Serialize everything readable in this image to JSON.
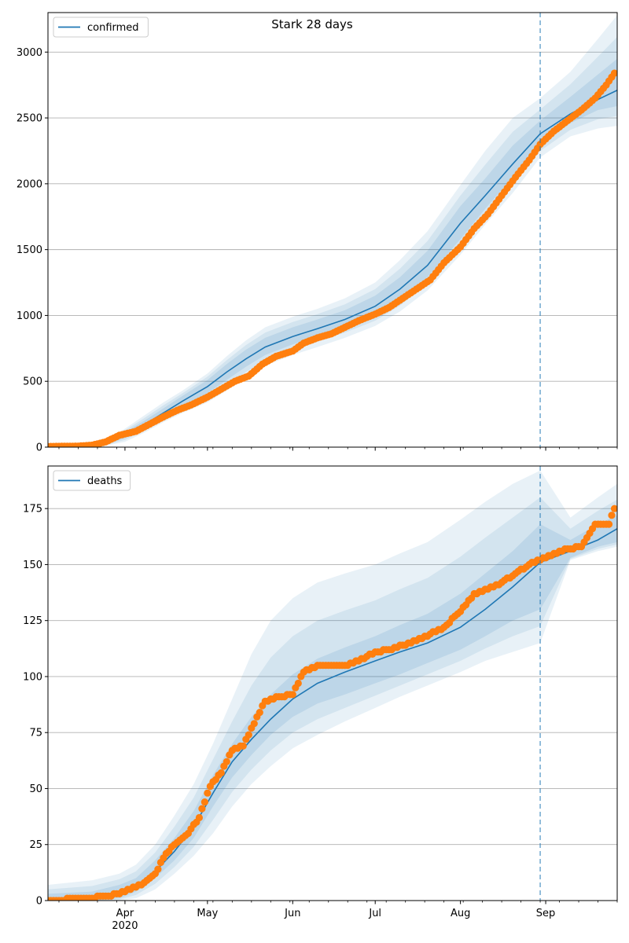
{
  "title": "Stark 28 days",
  "chart_data": [
    {
      "type": "line",
      "ylabel": "",
      "xlabel": "",
      "x_range": [
        "2020-03-04",
        "2020-09-27"
      ],
      "ylim": [
        0,
        3300
      ],
      "yticks": [
        0,
        500,
        1000,
        1500,
        2000,
        2500,
        3000
      ],
      "grid": "horizontal",
      "legend": {
        "placement": "upper-left",
        "entries": [
          "confirmed"
        ]
      },
      "forecast_start": "2020-08-30",
      "series": [
        {
          "name": "confirmed",
          "role": "model",
          "color": "#1f77b4",
          "x": [
            "2020-03-04",
            "2020-03-18",
            "2020-03-25",
            "2020-04-01",
            "2020-04-08",
            "2020-04-15",
            "2020-04-22",
            "2020-05-01",
            "2020-05-08",
            "2020-05-15",
            "2020-05-22",
            "2020-06-01",
            "2020-06-10",
            "2020-06-20",
            "2020-07-01",
            "2020-07-10",
            "2020-07-20",
            "2020-08-01",
            "2020-08-10",
            "2020-08-20",
            "2020-08-30",
            "2020-09-10",
            "2020-09-20",
            "2020-09-27"
          ],
          "values": [
            0,
            5,
            25,
            90,
            170,
            260,
            350,
            460,
            570,
            670,
            760,
            840,
            900,
            970,
            1070,
            1200,
            1380,
            1700,
            1910,
            2150,
            2380,
            2530,
            2640,
            2710
          ],
          "band_outer_lower": [
            0,
            0,
            10,
            40,
            110,
            190,
            260,
            340,
            430,
            530,
            620,
            700,
            760,
            830,
            920,
            1030,
            1190,
            1460,
            1690,
            1930,
            2200,
            2360,
            2420,
            2440
          ],
          "band_outer_upper": [
            5,
            15,
            50,
            140,
            240,
            340,
            430,
            560,
            690,
            810,
            910,
            990,
            1050,
            1130,
            1250,
            1420,
            1640,
            1990,
            2250,
            2500,
            2650,
            2850,
            3100,
            3280
          ],
          "band_inner_lower": [
            0,
            2,
            18,
            70,
            145,
            230,
            310,
            410,
            510,
            610,
            700,
            780,
            840,
            910,
            1000,
            1120,
            1290,
            1580,
            1810,
            2050,
            2300,
            2460,
            2560,
            2590
          ],
          "band_inner_upper": [
            2,
            9,
            35,
            115,
            200,
            295,
            390,
            510,
            630,
            740,
            830,
            910,
            970,
            1040,
            1150,
            1290,
            1490,
            1830,
            2040,
            2290,
            2480,
            2660,
            2830,
            2950
          ]
        },
        {
          "name": "observed confirmed",
          "role": "observed",
          "color": "#ff7f0e",
          "x": [
            "2020-03-04",
            "2020-03-15",
            "2020-03-20",
            "2020-03-25",
            "2020-03-30",
            "2020-04-05",
            "2020-04-10",
            "2020-04-15",
            "2020-04-20",
            "2020-04-25",
            "2020-05-01",
            "2020-05-06",
            "2020-05-11",
            "2020-05-16",
            "2020-05-21",
            "2020-05-26",
            "2020-06-01",
            "2020-06-05",
            "2020-06-10",
            "2020-06-15",
            "2020-06-20",
            "2020-06-25",
            "2020-07-01",
            "2020-07-06",
            "2020-07-11",
            "2020-07-16",
            "2020-07-21",
            "2020-07-26",
            "2020-08-01",
            "2020-08-06",
            "2020-08-11",
            "2020-08-16",
            "2020-08-21",
            "2020-08-26",
            "2020-08-30",
            "2020-09-04",
            "2020-09-09",
            "2020-09-14",
            "2020-09-19",
            "2020-09-23",
            "2020-09-26"
          ],
          "values": [
            5,
            8,
            15,
            40,
            90,
            120,
            175,
            230,
            280,
            320,
            380,
            440,
            500,
            540,
            630,
            690,
            730,
            790,
            830,
            860,
            910,
            960,
            1010,
            1060,
            1130,
            1200,
            1270,
            1400,
            1520,
            1660,
            1770,
            1910,
            2050,
            2180,
            2300,
            2400,
            2480,
            2560,
            2650,
            2750,
            2840
          ]
        }
      ]
    },
    {
      "type": "line",
      "ylabel": "",
      "xlabel": "",
      "x_range": [
        "2020-03-04",
        "2020-09-27"
      ],
      "ylim": [
        0,
        194
      ],
      "yticks": [
        0,
        25,
        50,
        75,
        100,
        125,
        150,
        175
      ],
      "xticks": [
        {
          "date": "2020-04-01",
          "label": "Apr",
          "sub": "2020"
        },
        {
          "date": "2020-05-01",
          "label": "May"
        },
        {
          "date": "2020-06-01",
          "label": "Jun"
        },
        {
          "date": "2020-07-01",
          "label": "Jul"
        },
        {
          "date": "2020-08-01",
          "label": "Aug"
        },
        {
          "date": "2020-09-01",
          "label": "Sep"
        }
      ],
      "grid": "horizontal",
      "legend": {
        "placement": "upper-left",
        "entries": [
          "deaths"
        ]
      },
      "forecast_start": "2020-08-30",
      "series": [
        {
          "name": "deaths",
          "role": "model",
          "color": "#1f77b4",
          "x": [
            "2020-03-04",
            "2020-03-20",
            "2020-03-30",
            "2020-04-05",
            "2020-04-12",
            "2020-04-19",
            "2020-04-26",
            "2020-05-03",
            "2020-05-10",
            "2020-05-17",
            "2020-05-24",
            "2020-06-01",
            "2020-06-10",
            "2020-06-20",
            "2020-07-01",
            "2020-07-10",
            "2020-07-20",
            "2020-08-01",
            "2020-08-10",
            "2020-08-20",
            "2020-08-30",
            "2020-09-10",
            "2020-09-20",
            "2020-09-27"
          ],
          "values": [
            0,
            1,
            3,
            6,
            13,
            22,
            33,
            48,
            62,
            72,
            81,
            90,
            97,
            102,
            107,
            111,
            115,
            122,
            130,
            140,
            151,
            156,
            161,
            166
          ],
          "band_outer_lower": [
            0,
            0,
            0,
            1,
            5,
            12,
            20,
            30,
            42,
            52,
            60,
            68,
            74,
            80,
            86,
            91,
            96,
            102,
            107,
            111,
            115,
            152,
            156,
            158
          ],
          "band_outer_upper": [
            7,
            9,
            12,
            16,
            25,
            38,
            52,
            70,
            90,
            110,
            125,
            135,
            142,
            146,
            150,
            155,
            160,
            170,
            178,
            186,
            192,
            171,
            180,
            186
          ],
          "band_inner_lower": [
            0,
            0,
            1,
            4,
            10,
            18,
            28,
            42,
            55,
            65,
            74,
            82,
            88,
            92,
            97,
            101,
            106,
            112,
            118,
            125,
            130,
            153,
            158,
            160
          ],
          "band_inner_upper": [
            3,
            4,
            7,
            10,
            18,
            28,
            40,
            56,
            70,
            82,
            92,
            101,
            108,
            113,
            118,
            123,
            128,
            137,
            146,
            156,
            168,
            161,
            168,
            172
          ]
        },
        {
          "name": "observed deaths",
          "role": "observed",
          "color": "#ff7f0e",
          "x": [
            "2020-03-04",
            "2020-03-18",
            "2020-03-25",
            "2020-03-30",
            "2020-04-03",
            "2020-04-08",
            "2020-04-12",
            "2020-04-16",
            "2020-04-20",
            "2020-04-24",
            "2020-04-28",
            "2020-05-02",
            "2020-05-06",
            "2020-05-10",
            "2020-05-14",
            "2020-05-18",
            "2020-05-22",
            "2020-05-27",
            "2020-06-01",
            "2020-06-05",
            "2020-06-10",
            "2020-06-15",
            "2020-06-20",
            "2020-06-25",
            "2020-07-01",
            "2020-07-06",
            "2020-07-11",
            "2020-07-16",
            "2020-07-21",
            "2020-07-26",
            "2020-08-01",
            "2020-08-06",
            "2020-08-11",
            "2020-08-16",
            "2020-08-21",
            "2020-08-26",
            "2020-08-30",
            "2020-09-04",
            "2020-09-09",
            "2020-09-14",
            "2020-09-19",
            "2020-09-24",
            "2020-09-26"
          ],
          "values": [
            0,
            1,
            2,
            3,
            5,
            8,
            12,
            21,
            26,
            30,
            37,
            51,
            57,
            67,
            69,
            79,
            89,
            91,
            92,
            102,
            105,
            105,
            105,
            107,
            111,
            112,
            114,
            116,
            119,
            122,
            129,
            137,
            139,
            142,
            146,
            150,
            152,
            155,
            157,
            158,
            168,
            168,
            175
          ]
        }
      ]
    }
  ]
}
